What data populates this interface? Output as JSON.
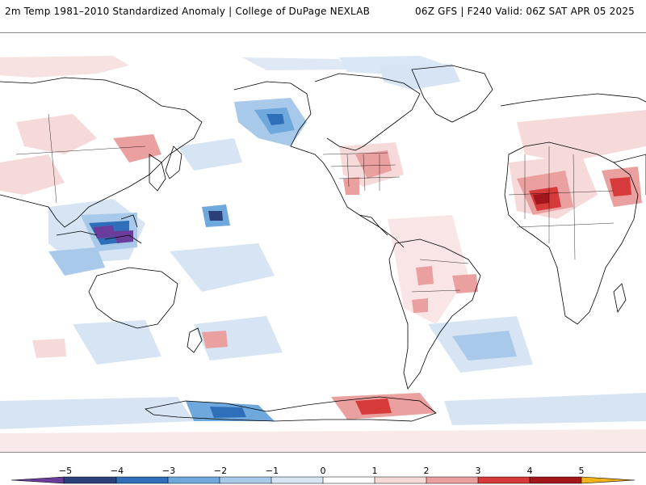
{
  "header": {
    "title_left": "2m Temp 1981–2010 Standardized Anomaly | College of DuPage NEXLAB",
    "title_right": "06Z GFS | F240 Valid: 06Z SAT APR 05 2025"
  },
  "colorbar": {
    "labels": [
      "−5",
      "−4",
      "−3",
      "−2",
      "−1",
      "0",
      "1",
      "2",
      "3",
      "4",
      "5"
    ],
    "colors": {
      "under": "#6a3d9a",
      "m5": "#2b3f7a",
      "m4": "#2f6fba",
      "m3": "#6fa8dc",
      "m2": "#a9c9ea",
      "m1": "#d6e4f3",
      "m0": "#ffffff",
      "p0": "#ffffff",
      "p1": "#f6dada",
      "p2": "#eba0a0",
      "p3": "#d63a3a",
      "p4": "#a3161c",
      "p5": "#6b0b10",
      "over": "#f2b21b"
    }
  }
}
